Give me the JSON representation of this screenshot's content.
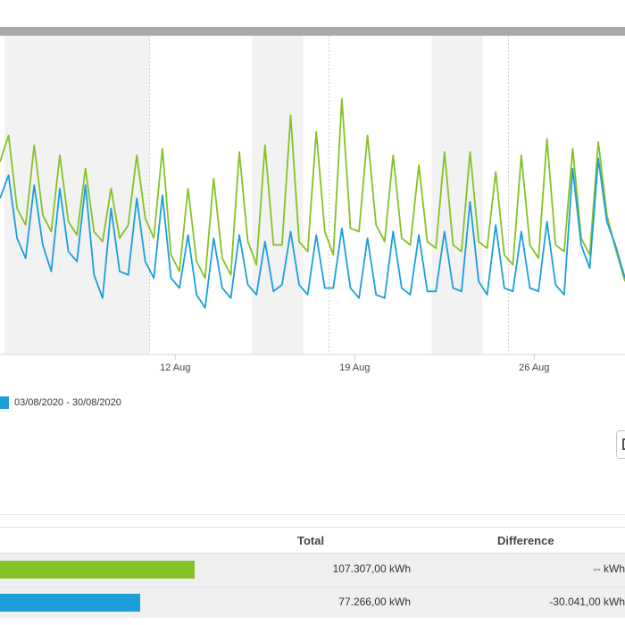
{
  "chart_data": {
    "type": "line",
    "x_unit": "date",
    "xlim": [
      "2020-08-05T04:00",
      "2020-08-29T13:00"
    ],
    "ylim": [
      0,
      48
    ],
    "weekend_bands": [
      [
        "2020-08-05T08:00",
        "2020-08-11T00:00"
      ],
      [
        "2020-08-15T00:00",
        "2020-08-17T00:00"
      ],
      [
        "2020-08-22T00:00",
        "2020-08-24T00:00"
      ]
    ],
    "x_ticks": [
      {
        "date": "2020-08-12",
        "label": "12 Aug"
      },
      {
        "date": "2020-08-19",
        "label": "19 Aug"
      },
      {
        "date": "2020-08-26",
        "label": "26 Aug"
      }
    ],
    "dashed_lines": [
      "2020-08-11",
      "2020-08-18",
      "2020-08-25"
    ],
    "series": [
      {
        "color": "#84c225",
        "points": [
          [
            "2020-08-05T04:00",
            29.0
          ],
          [
            "2020-08-05T12:00",
            33.0
          ],
          [
            "2020-08-05T20:00",
            22.0
          ],
          [
            "2020-08-06T04:00",
            19.5
          ],
          [
            "2020-08-06T12:00",
            31.5
          ],
          [
            "2020-08-06T20:00",
            21.0
          ],
          [
            "2020-08-07T04:00",
            18.5
          ],
          [
            "2020-08-07T12:00",
            30.0
          ],
          [
            "2020-08-07T20:00",
            20.0
          ],
          [
            "2020-08-08T04:00",
            18.0
          ],
          [
            "2020-08-08T12:00",
            28.0
          ],
          [
            "2020-08-08T20:00",
            18.5
          ],
          [
            "2020-08-09T04:00",
            17.0
          ],
          [
            "2020-08-09T12:00",
            25.0
          ],
          [
            "2020-08-09T20:00",
            17.5
          ],
          [
            "2020-08-10T04:00",
            19.5
          ],
          [
            "2020-08-10T12:00",
            30.0
          ],
          [
            "2020-08-10T20:00",
            20.5
          ],
          [
            "2020-08-11T04:00",
            17.5
          ],
          [
            "2020-08-11T12:00",
            31.0
          ],
          [
            "2020-08-11T20:00",
            15.0
          ],
          [
            "2020-08-12T04:00",
            12.5
          ],
          [
            "2020-08-12T12:00",
            25.0
          ],
          [
            "2020-08-12T20:00",
            14.0
          ],
          [
            "2020-08-13T04:00",
            11.5
          ],
          [
            "2020-08-13T12:00",
            26.5
          ],
          [
            "2020-08-13T20:00",
            14.5
          ],
          [
            "2020-08-14T04:00",
            12.0
          ],
          [
            "2020-08-14T12:00",
            30.5
          ],
          [
            "2020-08-14T20:00",
            17.0
          ],
          [
            "2020-08-15T04:00",
            13.5
          ],
          [
            "2020-08-15T12:00",
            31.5
          ],
          [
            "2020-08-15T20:00",
            16.5
          ],
          [
            "2020-08-16T04:00",
            16.5
          ],
          [
            "2020-08-16T12:00",
            36.0
          ],
          [
            "2020-08-16T20:00",
            17.0
          ],
          [
            "2020-08-17T04:00",
            15.5
          ],
          [
            "2020-08-17T12:00",
            33.5
          ],
          [
            "2020-08-17T20:00",
            18.5
          ],
          [
            "2020-08-18T04:00",
            15.0
          ],
          [
            "2020-08-18T12:00",
            38.5
          ],
          [
            "2020-08-18T20:00",
            19.0
          ],
          [
            "2020-08-19T04:00",
            18.5
          ],
          [
            "2020-08-19T12:00",
            33.0
          ],
          [
            "2020-08-19T20:00",
            19.5
          ],
          [
            "2020-08-20T04:00",
            17.0
          ],
          [
            "2020-08-20T12:00",
            30.0
          ],
          [
            "2020-08-20T20:00",
            17.5
          ],
          [
            "2020-08-21T04:00",
            16.5
          ],
          [
            "2020-08-21T12:00",
            28.5
          ],
          [
            "2020-08-21T20:00",
            17.0
          ],
          [
            "2020-08-22T04:00",
            16.0
          ],
          [
            "2020-08-22T12:00",
            30.5
          ],
          [
            "2020-08-22T20:00",
            16.5
          ],
          [
            "2020-08-23T04:00",
            15.5
          ],
          [
            "2020-08-23T12:00",
            30.5
          ],
          [
            "2020-08-23T20:00",
            17.0
          ],
          [
            "2020-08-24T04:00",
            16.0
          ],
          [
            "2020-08-24T12:00",
            27.5
          ],
          [
            "2020-08-24T20:00",
            15.0
          ],
          [
            "2020-08-25T04:00",
            13.5
          ],
          [
            "2020-08-25T12:00",
            30.0
          ],
          [
            "2020-08-25T20:00",
            16.5
          ],
          [
            "2020-08-26T04:00",
            14.5
          ],
          [
            "2020-08-26T12:00",
            32.5
          ],
          [
            "2020-08-26T20:00",
            16.5
          ],
          [
            "2020-08-27T04:00",
            15.5
          ],
          [
            "2020-08-27T12:00",
            31.0
          ],
          [
            "2020-08-27T20:00",
            17.5
          ],
          [
            "2020-08-28T04:00",
            15.0
          ],
          [
            "2020-08-28T12:00",
            32.0
          ],
          [
            "2020-08-28T20:00",
            21.0
          ],
          [
            "2020-08-29T04:00",
            16.0
          ],
          [
            "2020-08-29T13:00",
            11.0
          ]
        ]
      },
      {
        "name": "03/08/2020 - 30/08/2020",
        "color": "#1a9fdb",
        "points": [
          [
            "2020-08-05T04:00",
            23.5
          ],
          [
            "2020-08-05T12:00",
            27.0
          ],
          [
            "2020-08-05T20:00",
            17.5
          ],
          [
            "2020-08-06T04:00",
            14.5
          ],
          [
            "2020-08-06T12:00",
            25.5
          ],
          [
            "2020-08-06T20:00",
            16.5
          ],
          [
            "2020-08-07T04:00",
            12.5
          ],
          [
            "2020-08-07T12:00",
            25.0
          ],
          [
            "2020-08-07T20:00",
            15.5
          ],
          [
            "2020-08-08T04:00",
            14.0
          ],
          [
            "2020-08-08T12:00",
            25.5
          ],
          [
            "2020-08-08T20:00",
            12.0
          ],
          [
            "2020-08-09T04:00",
            8.5
          ],
          [
            "2020-08-09T12:00",
            22.0
          ],
          [
            "2020-08-09T20:00",
            12.5
          ],
          [
            "2020-08-10T04:00",
            12.0
          ],
          [
            "2020-08-10T12:00",
            23.5
          ],
          [
            "2020-08-10T20:00",
            14.0
          ],
          [
            "2020-08-11T04:00",
            11.5
          ],
          [
            "2020-08-11T12:00",
            24.0
          ],
          [
            "2020-08-11T20:00",
            11.5
          ],
          [
            "2020-08-12T04:00",
            10.0
          ],
          [
            "2020-08-12T12:00",
            18.0
          ],
          [
            "2020-08-12T20:00",
            9.0
          ],
          [
            "2020-08-13T04:00",
            7.0
          ],
          [
            "2020-08-13T12:00",
            17.5
          ],
          [
            "2020-08-13T20:00",
            10.0
          ],
          [
            "2020-08-14T04:00",
            8.5
          ],
          [
            "2020-08-14T12:00",
            18.0
          ],
          [
            "2020-08-14T20:00",
            10.5
          ],
          [
            "2020-08-15T04:00",
            9.0
          ],
          [
            "2020-08-15T12:00",
            17.0
          ],
          [
            "2020-08-15T20:00",
            9.5
          ],
          [
            "2020-08-16T04:00",
            10.5
          ],
          [
            "2020-08-16T12:00",
            18.5
          ],
          [
            "2020-08-16T20:00",
            10.5
          ],
          [
            "2020-08-17T04:00",
            9.0
          ],
          [
            "2020-08-17T12:00",
            18.0
          ],
          [
            "2020-08-17T20:00",
            10.0
          ],
          [
            "2020-08-18T04:00",
            10.0
          ],
          [
            "2020-08-18T12:00",
            19.0
          ],
          [
            "2020-08-18T20:00",
            10.0
          ],
          [
            "2020-08-19T04:00",
            8.5
          ],
          [
            "2020-08-19T12:00",
            17.5
          ],
          [
            "2020-08-19T20:00",
            9.0
          ],
          [
            "2020-08-20T04:00",
            8.5
          ],
          [
            "2020-08-20T12:00",
            18.5
          ],
          [
            "2020-08-20T20:00",
            10.0
          ],
          [
            "2020-08-21T04:00",
            9.0
          ],
          [
            "2020-08-21T12:00",
            18.0
          ],
          [
            "2020-08-21T20:00",
            9.5
          ],
          [
            "2020-08-22T04:00",
            9.5
          ],
          [
            "2020-08-22T12:00",
            18.5
          ],
          [
            "2020-08-22T20:00",
            10.0
          ],
          [
            "2020-08-23T04:00",
            9.5
          ],
          [
            "2020-08-23T12:00",
            23.0
          ],
          [
            "2020-08-23T20:00",
            11.0
          ],
          [
            "2020-08-24T04:00",
            9.0
          ],
          [
            "2020-08-24T12:00",
            19.5
          ],
          [
            "2020-08-24T20:00",
            10.0
          ],
          [
            "2020-08-25T04:00",
            9.5
          ],
          [
            "2020-08-25T12:00",
            18.5
          ],
          [
            "2020-08-25T20:00",
            10.0
          ],
          [
            "2020-08-26T04:00",
            9.5
          ],
          [
            "2020-08-26T12:00",
            20.0
          ],
          [
            "2020-08-26T20:00",
            10.5
          ],
          [
            "2020-08-27T04:00",
            9.0
          ],
          [
            "2020-08-27T12:00",
            28.0
          ],
          [
            "2020-08-27T20:00",
            16.5
          ],
          [
            "2020-08-28T04:00",
            13.0
          ],
          [
            "2020-08-28T12:00",
            29.5
          ],
          [
            "2020-08-28T20:00",
            20.0
          ],
          [
            "2020-08-29T04:00",
            16.5
          ],
          [
            "2020-08-29T13:00",
            11.5
          ]
        ]
      }
    ]
  },
  "legend": {
    "label": "03/08/2020 - 30/08/2020",
    "color": "#1a9fdb"
  },
  "summary_table": {
    "headers": {
      "total": "Total",
      "difference": "Difference"
    },
    "rows": [
      {
        "color": "#84c225",
        "bar_fraction": 1.0,
        "total": "107.307,00 kWh",
        "difference": "-- kWh"
      },
      {
        "color": "#1a9fdb",
        "bar_fraction": 0.72,
        "total": "77.266,00 kWh",
        "difference": "-30.041,00 kWh"
      }
    ]
  }
}
